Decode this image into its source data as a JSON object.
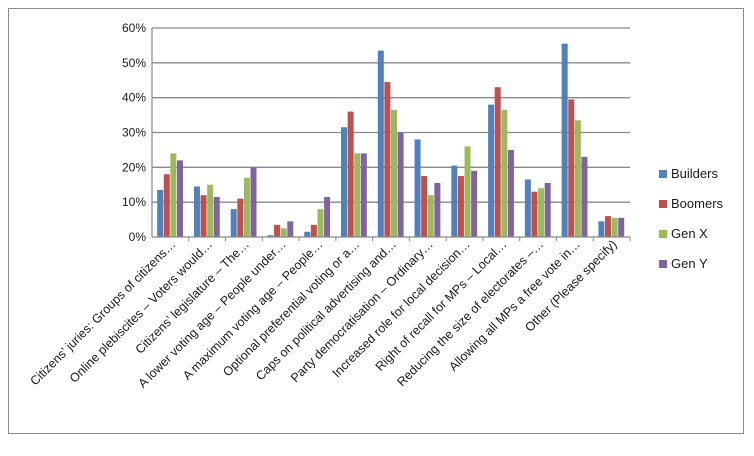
{
  "chart_data": {
    "type": "bar",
    "categories": [
      "Citizens’ juries: Groups of citizens…",
      "Online plebiscites – Voters would…",
      "Citizens’ legislature – The…",
      "A lower voting age – People under…",
      "A maximum voting age – People…",
      "Optional preferential voting or a…",
      "Caps on political advertising and…",
      "Party democratisation – Ordinary…",
      "Increased role for local decision…",
      "Right of recall for MPs – Local…",
      "Reducing the size of electorates –…",
      "Allowing all MPs a free vote in…",
      "Other (Please specify)"
    ],
    "series": [
      {
        "name": "Builders",
        "color": "#4f81bd",
        "values": [
          13.5,
          14.5,
          8,
          0.5,
          1.5,
          31.5,
          53.5,
          28,
          20.5,
          38,
          16.5,
          55.5,
          4.5
        ]
      },
      {
        "name": "Boomers",
        "color": "#c0504d",
        "values": [
          18,
          12,
          11,
          3.5,
          3.5,
          36,
          44.5,
          17.5,
          17.5,
          43,
          13,
          39.5,
          6
        ]
      },
      {
        "name": "Gen X",
        "color": "#9bbb59",
        "values": [
          24,
          15,
          17,
          2.5,
          8,
          24,
          36.5,
          12,
          26,
          36.5,
          14,
          33.5,
          5.5
        ]
      },
      {
        "name": "Gen Y",
        "color": "#8064a2",
        "values": [
          22,
          11.5,
          20,
          4.5,
          11.5,
          24,
          30,
          15.5,
          19,
          25,
          15.5,
          23,
          5.5
        ]
      }
    ],
    "yticks": [
      "0%",
      "10%",
      "20%",
      "30%",
      "40%",
      "50%",
      "60%"
    ],
    "ylim": [
      0,
      60
    ],
    "grid": "horizontal",
    "legend_position": "right"
  }
}
